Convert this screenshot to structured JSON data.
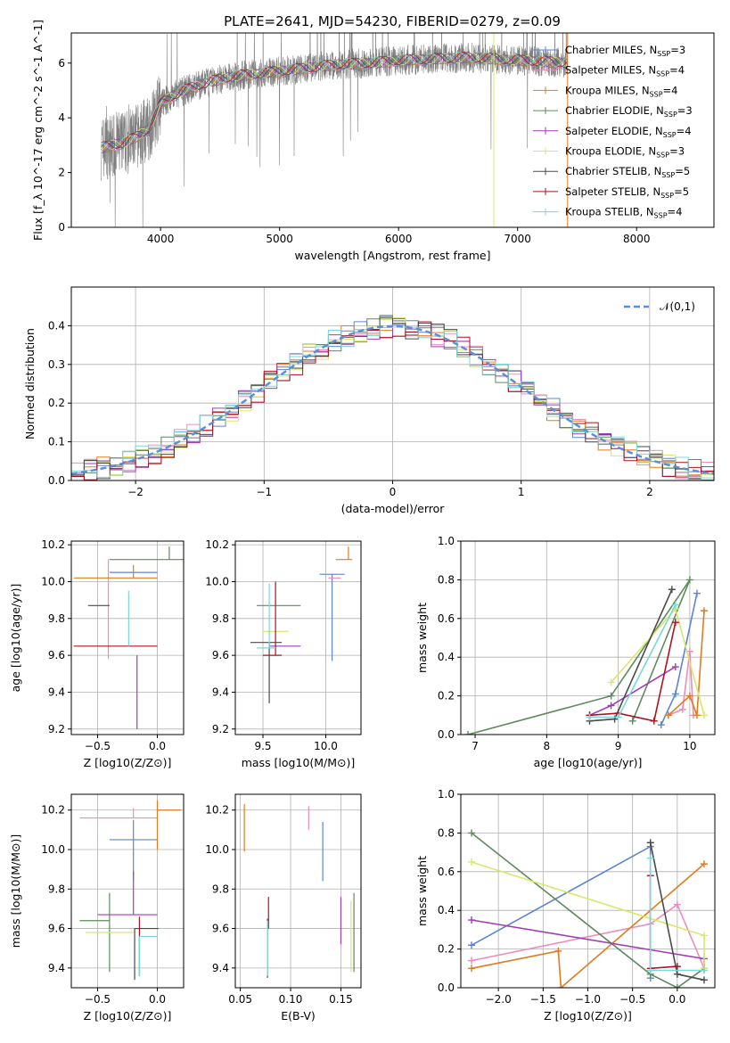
{
  "figure": {
    "title": "PLATE=2641, MJD=54230, FIBERID=0279, z=0.09"
  },
  "models": [
    {
      "name": "Chabrier MILES",
      "n": "3",
      "color": "#5b84d6"
    },
    {
      "name": "Salpeter MILES",
      "n": "4",
      "color": "#f08bbd"
    },
    {
      "name": "Kroupa MILES",
      "n": "4",
      "color": "#e07b1f"
    },
    {
      "name": "Chabrier ELODIE",
      "n": "3",
      "color": "#5f8a5f"
    },
    {
      "name": "Salpeter ELODIE",
      "n": "4",
      "color": "#a23cb3"
    },
    {
      "name": "Kroupa ELODIE",
      "n": "3",
      "color": "#d8e86a"
    },
    {
      "name": "Chabrier STELIB",
      "n": "5",
      "color": "#4a4a4a"
    },
    {
      "name": "Salpeter STELIB",
      "n": "5",
      "color": "#b01020"
    },
    {
      "name": "Kroupa STELIB",
      "n": "4",
      "color": "#78d8d8"
    }
  ],
  "chart_data": [
    {
      "id": "spectrum",
      "type": "line",
      "xlabel": "wavelength [Angstrom, rest frame]",
      "ylabel": "Flux [f_λ 10^-17 erg cm^-2 s^-1 A^-1]",
      "xlim": [
        3250,
        8650
      ],
      "ylim": [
        0,
        7.1
      ],
      "xticks": [
        4000,
        5000,
        6000,
        7000,
        8000
      ],
      "yticks": [
        0,
        2,
        4,
        6
      ],
      "data_color": "#808080",
      "data_range": [
        3500,
        7420
      ],
      "continuum_x": [
        3500,
        3600,
        3700,
        3800,
        3900,
        4000,
        4100,
        4200,
        4400,
        4600,
        4800,
        5000,
        5200,
        5500,
        5800,
        6000,
        6300,
        6600,
        7000,
        7420
      ],
      "continuum_y": [
        2.9,
        3.0,
        3.1,
        3.3,
        3.6,
        4.5,
        4.8,
        5.0,
        5.3,
        5.5,
        5.6,
        5.7,
        5.8,
        5.95,
        6.0,
        6.1,
        6.15,
        6.2,
        6.1,
        6.0
      ],
      "vertical_lines": [
        {
          "x": 6800,
          "color": "#d8e86a"
        },
        {
          "x": 7420,
          "color": "#e07b1f"
        }
      ],
      "legend": "top-right"
    },
    {
      "id": "residuals",
      "type": "histogram",
      "xlabel": "(data-model)/error",
      "ylabel": "Normed distribution",
      "xlim": [
        -2.5,
        2.5
      ],
      "ylim": [
        0,
        0.5
      ],
      "xticks": [
        -2,
        -1,
        0,
        1,
        2
      ],
      "yticks": [
        0.0,
        0.1,
        0.2,
        0.3,
        0.4
      ],
      "reference_curve": {
        "label": "𝒩(0,1)",
        "color": "#5b8fd9"
      },
      "bin_width": 0.1,
      "grid": true,
      "legend": "top-right"
    },
    {
      "id": "age-vs-Z",
      "type": "errorbar",
      "xlabel": "Z [log10(Z/Z⊙)]",
      "ylabel": "age [log10(age/yr)]",
      "xlim": [
        -0.72,
        0.22
      ],
      "ylim": [
        9.17,
        10.22
      ],
      "xticks": [
        -0.5,
        0.0
      ],
      "yticks": [
        9.2,
        9.4,
        9.6,
        9.8,
        10.0,
        10.2
      ],
      "points": [
        {
          "x": -0.2,
          "xerr": [
            0.2,
            0.2
          ],
          "y": 10.05,
          "yerr": [
            0.0,
            0.0
          ]
        },
        {
          "x": -0.41,
          "xerr": [
            0.0,
            0.0
          ],
          "y": 9.85,
          "yerr": [
            0.27,
            0.27
          ]
        },
        {
          "x": -0.2,
          "xerr": [
            0.5,
            0.2
          ],
          "y": 10.02,
          "yerr": [
            0.0,
            0.07
          ]
        },
        {
          "x": 0.1,
          "xerr": [
            0.5,
            0.15
          ],
          "y": 10.12,
          "yerr": [
            0.0,
            0.07
          ]
        },
        {
          "x": -0.19,
          "xerr": [
            0.0,
            0.0
          ],
          "y": 9.85,
          "yerr": [
            0.0,
            0.0
          ]
        },
        {
          "x": -0.5,
          "xerr": [
            0.0,
            0.0
          ],
          "y": 9.87,
          "yerr": [
            0.0,
            0.0
          ]
        },
        {
          "x": -0.4,
          "xerr": [
            0.18,
            0.0
          ],
          "y": 9.87,
          "yerr": [
            0.0,
            0.0
          ]
        },
        {
          "x": -0.2,
          "xerr": [
            0.5,
            0.2
          ],
          "y": 9.65,
          "yerr": [
            0.0,
            0.0
          ]
        },
        {
          "x": -0.24,
          "xerr": [
            0.0,
            0.0
          ],
          "y": 9.95,
          "yerr": [
            0.3,
            0.0
          ]
        },
        {
          "x": -0.5,
          "xerr": [
            0.0,
            0.0
          ],
          "y": 9.73,
          "yerr": [
            0.0,
            0.0
          ]
        },
        {
          "x": -0.2,
          "xerr": [
            0.0,
            0.0
          ],
          "y": 9.8,
          "yerr": [
            0.0,
            0.0
          ]
        },
        {
          "x": -0.2,
          "xerr": [
            0.0,
            0.0
          ],
          "y": 9.67,
          "yerr": [
            0.0,
            0.0
          ]
        },
        {
          "x": -0.2,
          "xerr": [
            0.0,
            0.0
          ],
          "y": 9.88,
          "yerr": [
            0.0,
            0.0
          ]
        },
        {
          "x": -0.17,
          "xerr": [
            0.0,
            0.0
          ],
          "y": 9.6,
          "yerr": [
            0.4,
            0.0
          ]
        },
        {
          "x": -0.2,
          "xerr": [
            0.0,
            0.0
          ],
          "y": 9.64,
          "yerr": [
            0.0,
            0.0
          ]
        }
      ]
    },
    {
      "id": "age-vs-mass",
      "type": "errorbar",
      "xlabel": "mass [log10(M/M⊙)]",
      "ylabel": "",
      "xlim": [
        9.28,
        10.28
      ],
      "ylim": [
        9.17,
        10.22
      ],
      "xticks": [
        9.5,
        10.0
      ],
      "yticks": [
        9.2,
        9.4,
        9.6,
        9.8,
        10.0,
        10.2
      ],
      "points": []
    },
    {
      "id": "mass-weight-vs-age",
      "type": "line",
      "xlabel": "age [log10(age/yr)]",
      "ylabel": "mass weight",
      "xlim": [
        6.8,
        10.35
      ],
      "ylim": [
        0,
        1.0
      ],
      "xticks": [
        7,
        8,
        9,
        10
      ],
      "yticks": [
        0.0,
        0.2,
        0.4,
        0.6,
        0.8,
        1.0
      ],
      "series": [
        {
          "x": [
            9.6,
            9.8,
            10.1
          ],
          "y": [
            0.05,
            0.21,
            0.73
          ]
        },
        {
          "x": [
            9.7,
            9.9,
            10.0,
            10.05
          ],
          "y": [
            0.1,
            0.13,
            0.43,
            0.1
          ]
        },
        {
          "x": [
            9.7,
            10.0,
            10.1,
            10.2
          ],
          "y": [
            0.1,
            0.2,
            0.1,
            0.64
          ]
        },
        {
          "x": [
            6.9,
            8.9,
            10.0,
            9.2
          ],
          "y": [
            0.0,
            0.2,
            0.8,
            0.07
          ]
        },
        {
          "x": [
            8.6,
            8.9,
            9.8
          ],
          "y": [
            0.1,
            0.15,
            0.35
          ]
        },
        {
          "x": [
            8.9,
            9.8,
            10.2
          ],
          "y": [
            0.27,
            0.65,
            0.1
          ]
        },
        {
          "x": [
            8.6,
            8.95,
            9.75
          ],
          "y": [
            0.07,
            0.08,
            0.75
          ]
        },
        {
          "x": [
            8.6,
            9.0,
            9.5,
            9.8
          ],
          "y": [
            0.1,
            0.11,
            0.07,
            0.58
          ]
        },
        {
          "x": [
            8.6,
            9.0,
            9.8
          ],
          "y": [
            0.09,
            0.09,
            0.67
          ]
        }
      ]
    },
    {
      "id": "mass-vs-Z",
      "type": "errorbar",
      "xlabel": "Z [log10(Z/Z⊙)]",
      "ylabel": "mass [log10(M/M⊙)]",
      "xlim": [
        -0.72,
        0.22
      ],
      "ylim": [
        9.3,
        10.28
      ],
      "xticks": [
        -0.5,
        0.0
      ],
      "yticks": [
        9.4,
        9.6,
        9.8,
        10.0,
        10.2
      ],
      "points": []
    },
    {
      "id": "mass-vs-EBV",
      "type": "errorbar",
      "xlabel": "E(B-V)",
      "ylabel": "",
      "xlim": [
        0.045,
        0.17
      ],
      "ylim": [
        9.3,
        10.28
      ],
      "xticks": [
        0.05,
        0.1,
        0.15
      ],
      "yticks": [
        9.4,
        9.6,
        9.8,
        10.0,
        10.2
      ],
      "points": []
    },
    {
      "id": "mass-weight-vs-Z",
      "type": "line",
      "xlabel": "Z [log10(Z/Z⊙)]",
      "ylabel": "mass weight",
      "xlim": [
        -2.42,
        0.42
      ],
      "ylim": [
        0,
        1.0
      ],
      "xticks": [
        -2.0,
        -1.5,
        -1.0,
        -0.5,
        0.0
      ],
      "yticks": [
        0.0,
        0.2,
        0.4,
        0.6,
        0.8,
        1.0
      ],
      "series": [
        {
          "x": [
            -2.3,
            -0.3,
            -0.3
          ],
          "y": [
            0.22,
            0.73,
            0.05
          ]
        },
        {
          "x": [
            -2.3,
            -0.3,
            0.0,
            0.3
          ],
          "y": [
            0.14,
            0.33,
            0.43,
            0.1
          ]
        },
        {
          "x": [
            -2.3,
            -1.33,
            -1.3,
            0.3
          ],
          "y": [
            0.1,
            0.19,
            0.0,
            0.64
          ]
        },
        {
          "x": [
            -2.3,
            -0.3,
            0.0,
            0.3
          ],
          "y": [
            0.8,
            0.07,
            0.0,
            0.1
          ]
        },
        {
          "x": [
            -2.3,
            0.3,
            0.3
          ],
          "y": [
            0.35,
            0.15,
            0.1
          ]
        },
        {
          "x": [
            -2.3,
            0.3,
            0.3
          ],
          "y": [
            0.65,
            0.27,
            0.1
          ]
        },
        {
          "x": [
            -0.3,
            0.0,
            0.3
          ],
          "y": [
            0.75,
            0.07,
            0.04
          ]
        },
        {
          "x": [
            -0.3,
            -0.3,
            0.0
          ],
          "y": [
            0.58,
            0.1,
            0.11
          ]
        },
        {
          "x": [
            -0.3,
            -0.3,
            0.3
          ],
          "y": [
            0.67,
            0.09,
            0.09
          ]
        }
      ]
    }
  ]
}
